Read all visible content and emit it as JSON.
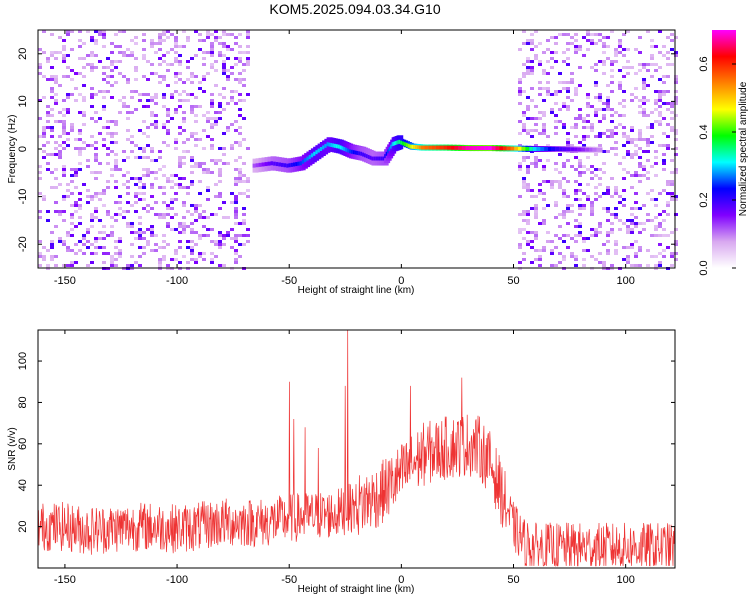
{
  "title": "KOM5.2025.094.03.34.G10",
  "chart_data": [
    {
      "type": "heatmap",
      "xlabel": "Height of straight line (km)",
      "ylabel": "Frequency (Hz)",
      "xlim": [
        -162,
        122
      ],
      "ylim": [
        -25,
        25
      ],
      "xticks": [
        -150,
        -100,
        -50,
        0,
        50,
        100
      ],
      "yticks": [
        -20,
        -10,
        0,
        10,
        20
      ],
      "colorbar": {
        "label": "Normalized spectral amplitude",
        "range": [
          0,
          0.7
        ],
        "ticks": [
          0.0,
          0.2,
          0.4,
          0.6
        ],
        "colors": [
          "#ffffff",
          "#d8a8f0",
          "#8000ff",
          "#0000ff",
          "#00ffff",
          "#00ff00",
          "#ffff00",
          "#ff8000",
          "#ff0000",
          "#ff00ff"
        ]
      },
      "ridge": {
        "x": [
          -65,
          -57,
          -50,
          -44,
          -38,
          -32,
          -27,
          -22,
          -17,
          -12,
          -7,
          -3,
          0,
          5,
          10,
          20,
          30,
          40,
          50,
          60,
          70,
          80,
          90
        ],
        "y": [
          -3.5,
          -3.0,
          -3.5,
          -3.0,
          -1.0,
          1.0,
          0.5,
          -0.5,
          -1.0,
          -2.0,
          -2.0,
          1.0,
          1.5,
          0.5,
          0.3,
          0.3,
          0.2,
          0.2,
          0.1,
          0.0,
          0.0,
          -0.1,
          -0.2
        ],
        "amplitude": [
          0.12,
          0.18,
          0.2,
          0.25,
          0.3,
          0.28,
          0.32,
          0.25,
          0.2,
          0.18,
          0.2,
          0.3,
          0.35,
          0.45,
          0.55,
          0.6,
          0.68,
          0.7,
          0.55,
          0.3,
          0.2,
          0.15,
          0.08
        ]
      },
      "noise_regions": [
        [
          -162,
          -68
        ],
        [
          52,
          122
        ]
      ]
    },
    {
      "type": "line",
      "xlabel": "Height of straight line (km)",
      "ylabel": "SNR (v/v)",
      "xlim": [
        -162,
        122
      ],
      "ylim": [
        0,
        115
      ],
      "xticks": [
        -150,
        -100,
        -50,
        0,
        50,
        100
      ],
      "yticks": [
        20,
        40,
        60,
        80,
        100
      ],
      "color": "#ee3333",
      "series": [
        {
          "x": [
            -162,
            -150,
            -140,
            -130,
            -120,
            -110,
            -100,
            -90,
            -80,
            -70,
            -60,
            -50,
            -40,
            -30,
            -20,
            -10,
            0,
            10,
            20,
            30,
            35,
            40,
            45,
            50,
            55,
            60,
            70,
            80,
            90,
            100,
            110,
            122
          ],
          "y": [
            20,
            20,
            18,
            19,
            20,
            20,
            19,
            20,
            22,
            22,
            22,
            24,
            25,
            26,
            30,
            35,
            45,
            55,
            58,
            60,
            58,
            50,
            35,
            20,
            12,
            10,
            10,
            10,
            10,
            10,
            10,
            10
          ]
        }
      ],
      "spikes": [
        {
          "x": -50,
          "y": 90
        },
        {
          "x": -48,
          "y": 72
        },
        {
          "x": -43,
          "y": 68
        },
        {
          "x": -37,
          "y": 58
        },
        {
          "x": -24,
          "y": 115
        },
        {
          "x": -25,
          "y": 88
        },
        {
          "x": 4,
          "y": 88
        },
        {
          "x": 27,
          "y": 92
        }
      ],
      "noise_amplitude": 12
    }
  ]
}
